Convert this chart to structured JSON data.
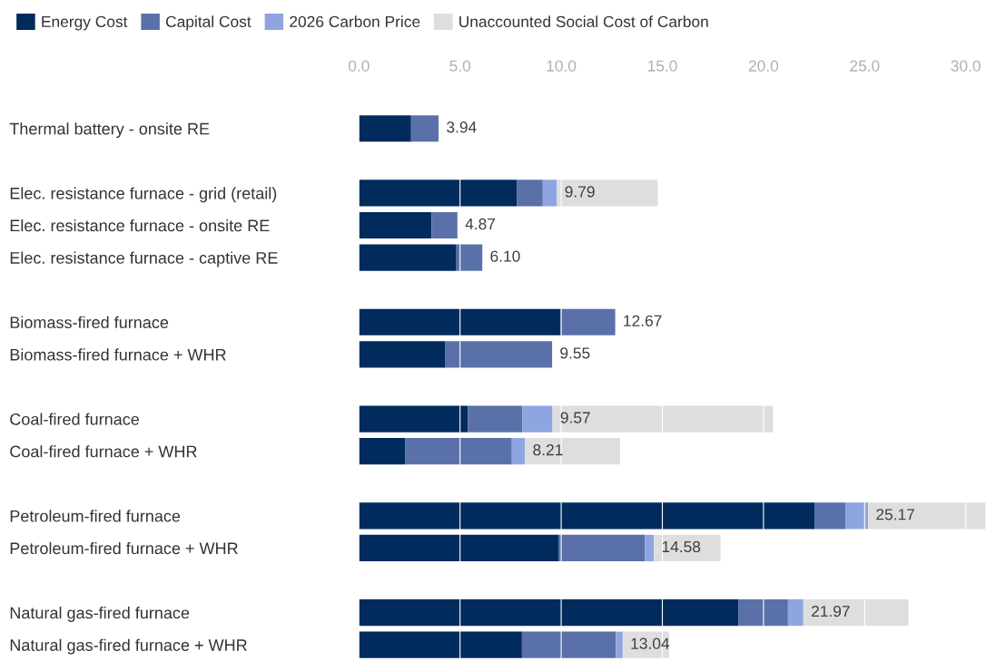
{
  "chart_data": {
    "type": "bar",
    "orientation": "horizontal",
    "stacked": true,
    "categories": [
      "Thermal battery - onsite RE",
      null,
      "Elec. resistance furnace - grid (retail)",
      "Elec. resistance furnace - onsite RE",
      "Elec. resistance furnace - captive RE",
      null,
      "Biomass-fired furnace",
      "Biomass-fired furnace + WHR",
      null,
      "Coal-fired furnace",
      "Coal-fired furnace + WHR",
      null,
      "Petroleum-fired furnace",
      "Petroleum-fired furnace + WHR",
      null,
      "Natural gas-fired furnace",
      "Natural gas-fired furnace + WHR"
    ],
    "series": [
      {
        "name": "Energy Cost",
        "color": "#002b5c",
        "values": [
          2.58,
          null,
          7.8,
          3.59,
          4.82,
          null,
          9.98,
          4.25,
          null,
          5.38,
          2.3,
          null,
          22.52,
          9.86,
          null,
          18.75,
          8.06
        ]
      },
      {
        "name": "Capital Cost",
        "color": "#5a70a8",
        "values": [
          1.36,
          null,
          1.29,
          1.28,
          1.28,
          null,
          2.69,
          5.3,
          null,
          2.7,
          5.26,
          null,
          1.55,
          4.27,
          null,
          2.46,
          4.64
        ]
      },
      {
        "name": "2026 Carbon Price",
        "color": "#8fa5e0",
        "values": [
          null,
          null,
          0.7,
          null,
          null,
          null,
          null,
          null,
          null,
          1.49,
          0.65,
          null,
          1.1,
          0.45,
          null,
          0.76,
          0.34
        ]
      },
      {
        "name": "Unaccounted Social Cost of Carbon",
        "color": "#dedede",
        "values": [
          null,
          null,
          4.98,
          null,
          null,
          null,
          null,
          null,
          null,
          10.9,
          4.7,
          null,
          5.8,
          3.3,
          null,
          5.2,
          2.3
        ]
      }
    ],
    "annotations": [
      {
        "text": "3.94",
        "x": 3.94,
        "y": "Thermal battery - onsite RE"
      },
      {
        "text": "9.79",
        "x": 9.79,
        "y": "Elec. resistance furnace - grid (retail)"
      },
      {
        "text": "4.87",
        "x": 4.87,
        "y": "Elec. resistance furnace - onsite RE"
      },
      {
        "text": "6.10",
        "x": 6.1,
        "y": "Elec. resistance furnace - captive RE"
      },
      {
        "text": "12.67",
        "x": 12.67,
        "y": "Biomass-fired furnace"
      },
      {
        "text": "9.55",
        "x": 9.55,
        "y": "Biomass-fired furnace + WHR"
      },
      {
        "text": "9.57",
        "x": 9.57,
        "y": "Coal-fired furnace"
      },
      {
        "text": "8.21",
        "x": 8.21,
        "y": "Coal-fired furnace + WHR"
      },
      {
        "text": "25.17",
        "x": 25.17,
        "y": "Petroleum-fired furnace"
      },
      {
        "text": "14.58",
        "x": 14.58,
        "y": "Petroleum-fired furnace + WHR"
      },
      {
        "text": "21.97",
        "x": 21.97,
        "y": "Natural gas-fired furnace"
      },
      {
        "text": "13.04",
        "x": 13.04,
        "y": "Natural gas-fired furnace + WHR"
      }
    ],
    "xlim": [
      0,
      31
    ],
    "xticks": [
      {
        "value": 0,
        "label": "0.0"
      },
      {
        "value": 5,
        "label": "5.0"
      },
      {
        "value": 10,
        "label": "10.0"
      },
      {
        "value": 15,
        "label": "15.0"
      },
      {
        "value": 20,
        "label": "20.0"
      },
      {
        "value": 25,
        "label": "25.0"
      },
      {
        "value": 30,
        "label": "30.0"
      }
    ],
    "grid": "x",
    "legend": "top left"
  }
}
